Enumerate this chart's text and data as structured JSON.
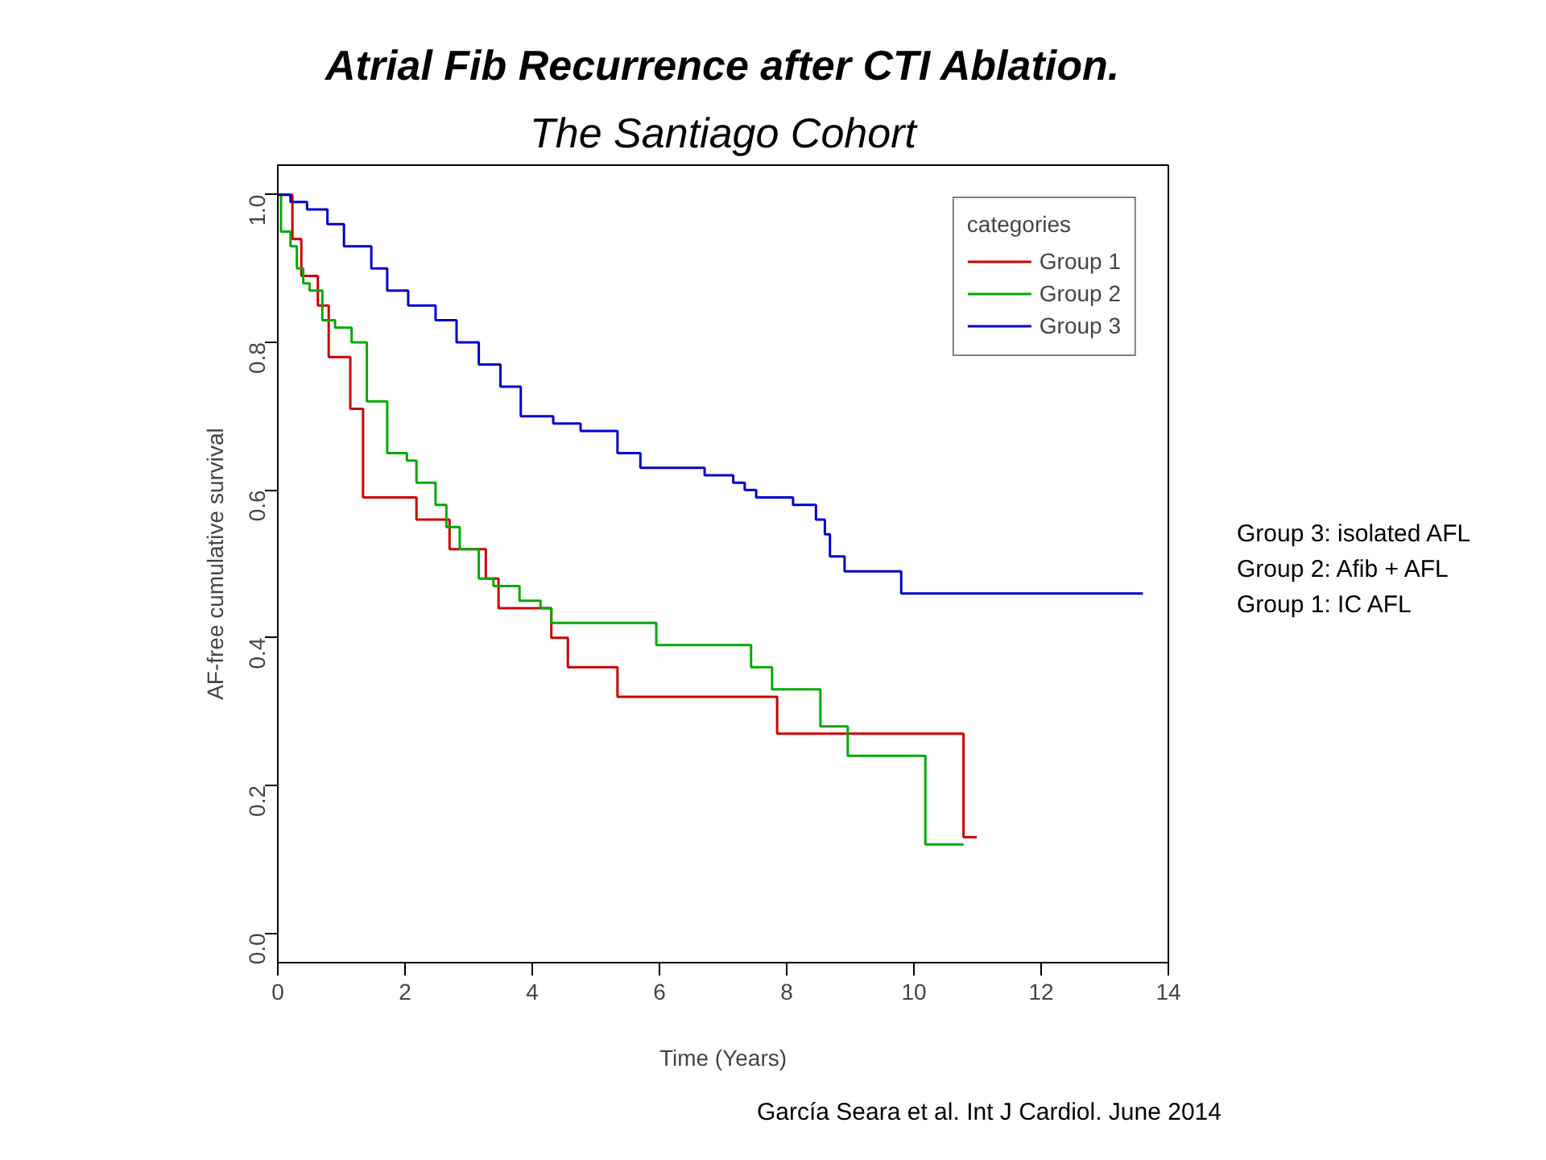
{
  "chart_data": {
    "type": "step",
    "title": "Atrial Fib Recurrence after CTI Ablation.",
    "subtitle": "The Santiago Cohort",
    "xlabel": "Time (Years)",
    "ylabel": "AF-free cumulative survival",
    "legend_title": "categories",
    "series": [
      {
        "name": "Group 1",
        "color": "#cc0000",
        "x": [
          0,
          0.23,
          0.37,
          0.63,
          0.8,
          1.14,
          1.34,
          2.18,
          2.7,
          3.27,
          3.47,
          4.3,
          4.56,
          5.34,
          7.85,
          10.78,
          10.99
        ],
        "values": [
          1.0,
          0.94,
          0.89,
          0.85,
          0.78,
          0.71,
          0.59,
          0.56,
          0.52,
          0.48,
          0.44,
          0.4,
          0.36,
          0.32,
          0.27,
          0.13,
          0.13
        ]
      },
      {
        "name": "Group 2",
        "color": "#00aa00",
        "x": [
          0,
          0.05,
          0.2,
          0.3,
          0.4,
          0.5,
          0.7,
          0.9,
          1.16,
          1.4,
          1.72,
          2.03,
          2.18,
          2.48,
          2.65,
          2.86,
          3.16,
          3.39,
          3.8,
          4.13,
          4.3,
          5.95,
          7.44,
          7.77,
          8.53,
          8.96,
          10.18,
          10.78
        ],
        "values": [
          1.0,
          0.95,
          0.93,
          0.9,
          0.88,
          0.87,
          0.83,
          0.82,
          0.8,
          0.72,
          0.65,
          0.64,
          0.61,
          0.58,
          0.55,
          0.52,
          0.48,
          0.47,
          0.45,
          0.44,
          0.42,
          0.39,
          0.36,
          0.33,
          0.28,
          0.24,
          0.12,
          0.12
        ]
      },
      {
        "name": "Group 3",
        "color": "#0000cc",
        "x": [
          0,
          0.2,
          0.46,
          0.78,
          1.04,
          1.47,
          1.72,
          2.05,
          2.48,
          2.81,
          3.16,
          3.5,
          3.82,
          4.33,
          4.76,
          5.34,
          5.7,
          6.71,
          7.16,
          7.34,
          7.52,
          8.1,
          8.46,
          8.6,
          8.68,
          8.91,
          9.8,
          13.6
        ],
        "values": [
          1.0,
          0.99,
          0.98,
          0.96,
          0.93,
          0.9,
          0.87,
          0.85,
          0.83,
          0.8,
          0.77,
          0.74,
          0.7,
          0.69,
          0.68,
          0.65,
          0.63,
          0.62,
          0.61,
          0.6,
          0.59,
          0.58,
          0.56,
          0.54,
          0.51,
          0.49,
          0.46,
          0.46
        ]
      }
    ],
    "xlim": [
      0,
      14
    ],
    "ylim": [
      -0.04,
      1.04
    ],
    "xticks": [
      0,
      2,
      4,
      6,
      8,
      10,
      12,
      14
    ],
    "yticks": [
      {
        "value": 0,
        "label": "0.0"
      },
      0.2,
      0.4,
      0.6,
      0.8,
      {
        "value": 1,
        "label": "1.0"
      }
    ],
    "grid": false,
    "legend": "top right",
    "annotations": [
      "Group 3: isolated AFL",
      "Group 2: Afib + AFL",
      "Group 1: IC AFL",
      "García Seara et al. Int J Cardiol. June 2014"
    ]
  }
}
